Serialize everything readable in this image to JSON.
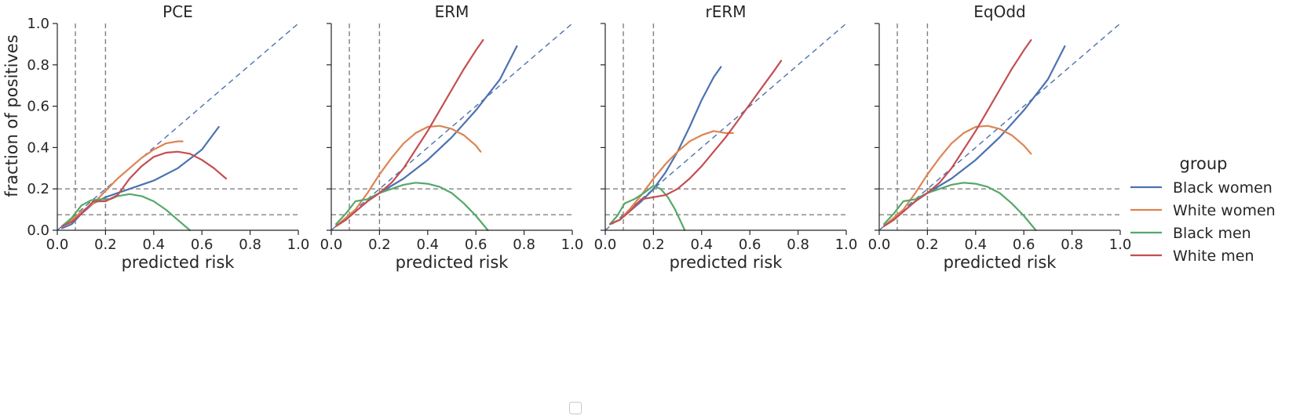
{
  "chart_data": {
    "type": "line",
    "shared_xlabel": "predicted risk",
    "shared_ylabel": "fraction of positives",
    "xlim": [
      0,
      1
    ],
    "ylim": [
      0,
      1
    ],
    "xticks": [
      "0.0",
      "0.2",
      "0.4",
      "0.6",
      "0.8",
      "1.0"
    ],
    "yticks": [
      "0.0",
      "0.2",
      "0.4",
      "0.6",
      "0.8",
      "1.0"
    ],
    "reference_lines": {
      "vertical": [
        0.075,
        0.2
      ],
      "horizontal": [
        0.075,
        0.2
      ],
      "diagonal": true
    },
    "legend": {
      "title": "group",
      "placement": "right",
      "entries": [
        {
          "name": "Black women",
          "color": "#4c72b0"
        },
        {
          "name": "White women",
          "color": "#dd8452"
        },
        {
          "name": "Black men",
          "color": "#55a868"
        },
        {
          "name": "White men",
          "color": "#c44e52"
        }
      ]
    },
    "panels": [
      {
        "title": "PCE",
        "series": [
          {
            "name": "Black women",
            "points": [
              [
                0.02,
                0.01
              ],
              [
                0.06,
                0.03
              ],
              [
                0.1,
                0.08
              ],
              [
                0.15,
                0.13
              ],
              [
                0.2,
                0.16
              ],
              [
                0.3,
                0.2
              ],
              [
                0.4,
                0.24
              ],
              [
                0.5,
                0.3
              ],
              [
                0.6,
                0.39
              ],
              [
                0.67,
                0.5
              ]
            ]
          },
          {
            "name": "White women",
            "points": [
              [
                0.02,
                0.02
              ],
              [
                0.06,
                0.05
              ],
              [
                0.1,
                0.09
              ],
              [
                0.15,
                0.13
              ],
              [
                0.2,
                0.19
              ],
              [
                0.25,
                0.25
              ],
              [
                0.3,
                0.3
              ],
              [
                0.35,
                0.35
              ],
              [
                0.4,
                0.39
              ],
              [
                0.45,
                0.42
              ],
              [
                0.5,
                0.43
              ],
              [
                0.52,
                0.43
              ]
            ]
          },
          {
            "name": "Black men",
            "points": [
              [
                0.02,
                0.02
              ],
              [
                0.06,
                0.06
              ],
              [
                0.1,
                0.12
              ],
              [
                0.14,
                0.145
              ],
              [
                0.18,
                0.15
              ],
              [
                0.22,
                0.15
              ],
              [
                0.25,
                0.165
              ],
              [
                0.3,
                0.175
              ],
              [
                0.35,
                0.165
              ],
              [
                0.4,
                0.14
              ],
              [
                0.45,
                0.1
              ],
              [
                0.5,
                0.05
              ],
              [
                0.55,
                0.0
              ]
            ]
          },
          {
            "name": "White men",
            "points": [
              [
                0.02,
                0.02
              ],
              [
                0.06,
                0.04
              ],
              [
                0.1,
                0.08
              ],
              [
                0.15,
                0.14
              ],
              [
                0.2,
                0.14
              ],
              [
                0.25,
                0.17
              ],
              [
                0.3,
                0.25
              ],
              [
                0.35,
                0.31
              ],
              [
                0.4,
                0.355
              ],
              [
                0.45,
                0.375
              ],
              [
                0.5,
                0.38
              ],
              [
                0.55,
                0.37
              ],
              [
                0.6,
                0.34
              ],
              [
                0.65,
                0.3
              ],
              [
                0.7,
                0.25
              ]
            ]
          }
        ]
      },
      {
        "title": "ERM",
        "series": [
          {
            "name": "Black women",
            "points": [
              [
                0.02,
                0.02
              ],
              [
                0.06,
                0.05
              ],
              [
                0.1,
                0.09
              ],
              [
                0.15,
                0.14
              ],
              [
                0.2,
                0.18
              ],
              [
                0.3,
                0.25
              ],
              [
                0.4,
                0.34
              ],
              [
                0.5,
                0.45
              ],
              [
                0.6,
                0.58
              ],
              [
                0.7,
                0.73
              ],
              [
                0.77,
                0.89
              ]
            ]
          },
          {
            "name": "White women",
            "points": [
              [
                0.02,
                0.02
              ],
              [
                0.06,
                0.06
              ],
              [
                0.1,
                0.1
              ],
              [
                0.15,
                0.18
              ],
              [
                0.2,
                0.27
              ],
              [
                0.25,
                0.35
              ],
              [
                0.3,
                0.42
              ],
              [
                0.35,
                0.47
              ],
              [
                0.4,
                0.5
              ],
              [
                0.45,
                0.505
              ],
              [
                0.5,
                0.49
              ],
              [
                0.55,
                0.46
              ],
              [
                0.6,
                0.41
              ],
              [
                0.62,
                0.38
              ]
            ]
          },
          {
            "name": "Black men",
            "points": [
              [
                0.02,
                0.03
              ],
              [
                0.06,
                0.08
              ],
              [
                0.1,
                0.14
              ],
              [
                0.15,
                0.15
              ],
              [
                0.2,
                0.18
              ],
              [
                0.25,
                0.2
              ],
              [
                0.3,
                0.22
              ],
              [
                0.35,
                0.23
              ],
              [
                0.4,
                0.225
              ],
              [
                0.45,
                0.21
              ],
              [
                0.5,
                0.18
              ],
              [
                0.55,
                0.13
              ],
              [
                0.6,
                0.07
              ],
              [
                0.65,
                0.0
              ]
            ]
          },
          {
            "name": "White men",
            "points": [
              [
                0.02,
                0.02
              ],
              [
                0.06,
                0.05
              ],
              [
                0.1,
                0.09
              ],
              [
                0.15,
                0.14
              ],
              [
                0.2,
                0.18
              ],
              [
                0.25,
                0.23
              ],
              [
                0.3,
                0.3
              ],
              [
                0.35,
                0.39
              ],
              [
                0.4,
                0.48
              ],
              [
                0.45,
                0.58
              ],
              [
                0.5,
                0.68
              ],
              [
                0.55,
                0.78
              ],
              [
                0.6,
                0.87
              ],
              [
                0.63,
                0.92
              ]
            ]
          }
        ]
      },
      {
        "title": "rERM",
        "series": [
          {
            "name": "Black women",
            "points": [
              [
                0.02,
                0.03
              ],
              [
                0.06,
                0.05
              ],
              [
                0.1,
                0.09
              ],
              [
                0.15,
                0.14
              ],
              [
                0.2,
                0.2
              ],
              [
                0.25,
                0.28
              ],
              [
                0.3,
                0.38
              ],
              [
                0.35,
                0.5
              ],
              [
                0.4,
                0.63
              ],
              [
                0.45,
                0.74
              ],
              [
                0.48,
                0.79
              ]
            ]
          },
          {
            "name": "White women",
            "points": [
              [
                0.02,
                0.03
              ],
              [
                0.06,
                0.05
              ],
              [
                0.1,
                0.1
              ],
              [
                0.15,
                0.17
              ],
              [
                0.2,
                0.25
              ],
              [
                0.25,
                0.32
              ],
              [
                0.3,
                0.38
              ],
              [
                0.35,
                0.43
              ],
              [
                0.4,
                0.46
              ],
              [
                0.45,
                0.48
              ],
              [
                0.5,
                0.47
              ],
              [
                0.53,
                0.47
              ]
            ]
          },
          {
            "name": "Black men",
            "points": [
              [
                0.02,
                0.03
              ],
              [
                0.05,
                0.07
              ],
              [
                0.08,
                0.13
              ],
              [
                0.12,
                0.15
              ],
              [
                0.16,
                0.18
              ],
              [
                0.2,
                0.215
              ],
              [
                0.23,
                0.2
              ],
              [
                0.26,
                0.16
              ],
              [
                0.29,
                0.1
              ],
              [
                0.31,
                0.05
              ],
              [
                0.33,
                0.0
              ]
            ]
          },
          {
            "name": "White men",
            "points": [
              [
                0.02,
                0.03
              ],
              [
                0.06,
                0.05
              ],
              [
                0.1,
                0.09
              ],
              [
                0.15,
                0.15
              ],
              [
                0.2,
                0.16
              ],
              [
                0.25,
                0.17
              ],
              [
                0.3,
                0.2
              ],
              [
                0.35,
                0.25
              ],
              [
                0.4,
                0.31
              ],
              [
                0.45,
                0.38
              ],
              [
                0.5,
                0.45
              ],
              [
                0.55,
                0.53
              ],
              [
                0.6,
                0.61
              ],
              [
                0.65,
                0.69
              ],
              [
                0.7,
                0.77
              ],
              [
                0.73,
                0.82
              ]
            ]
          }
        ]
      },
      {
        "title": "EqOdd",
        "series": [
          {
            "name": "Black women",
            "points": [
              [
                0.02,
                0.02
              ],
              [
                0.06,
                0.05
              ],
              [
                0.1,
                0.09
              ],
              [
                0.15,
                0.14
              ],
              [
                0.2,
                0.18
              ],
              [
                0.3,
                0.25
              ],
              [
                0.4,
                0.34
              ],
              [
                0.5,
                0.45
              ],
              [
                0.6,
                0.58
              ],
              [
                0.7,
                0.73
              ],
              [
                0.77,
                0.89
              ]
            ]
          },
          {
            "name": "White women",
            "points": [
              [
                0.02,
                0.02
              ],
              [
                0.06,
                0.06
              ],
              [
                0.1,
                0.1
              ],
              [
                0.15,
                0.18
              ],
              [
                0.2,
                0.27
              ],
              [
                0.25,
                0.35
              ],
              [
                0.3,
                0.42
              ],
              [
                0.35,
                0.47
              ],
              [
                0.4,
                0.5
              ],
              [
                0.45,
                0.505
              ],
              [
                0.5,
                0.49
              ],
              [
                0.55,
                0.46
              ],
              [
                0.6,
                0.41
              ],
              [
                0.63,
                0.37
              ]
            ]
          },
          {
            "name": "Black men",
            "points": [
              [
                0.02,
                0.03
              ],
              [
                0.06,
                0.08
              ],
              [
                0.1,
                0.14
              ],
              [
                0.15,
                0.15
              ],
              [
                0.2,
                0.18
              ],
              [
                0.25,
                0.2
              ],
              [
                0.3,
                0.22
              ],
              [
                0.35,
                0.23
              ],
              [
                0.4,
                0.225
              ],
              [
                0.45,
                0.21
              ],
              [
                0.5,
                0.18
              ],
              [
                0.55,
                0.13
              ],
              [
                0.6,
                0.07
              ],
              [
                0.65,
                0.0
              ]
            ]
          },
          {
            "name": "White men",
            "points": [
              [
                0.02,
                0.02
              ],
              [
                0.06,
                0.05
              ],
              [
                0.1,
                0.09
              ],
              [
                0.15,
                0.14
              ],
              [
                0.2,
                0.18
              ],
              [
                0.25,
                0.23
              ],
              [
                0.3,
                0.3
              ],
              [
                0.35,
                0.39
              ],
              [
                0.4,
                0.48
              ],
              [
                0.45,
                0.58
              ],
              [
                0.5,
                0.68
              ],
              [
                0.55,
                0.78
              ],
              [
                0.6,
                0.87
              ],
              [
                0.63,
                0.92
              ]
            ]
          }
        ]
      }
    ]
  }
}
